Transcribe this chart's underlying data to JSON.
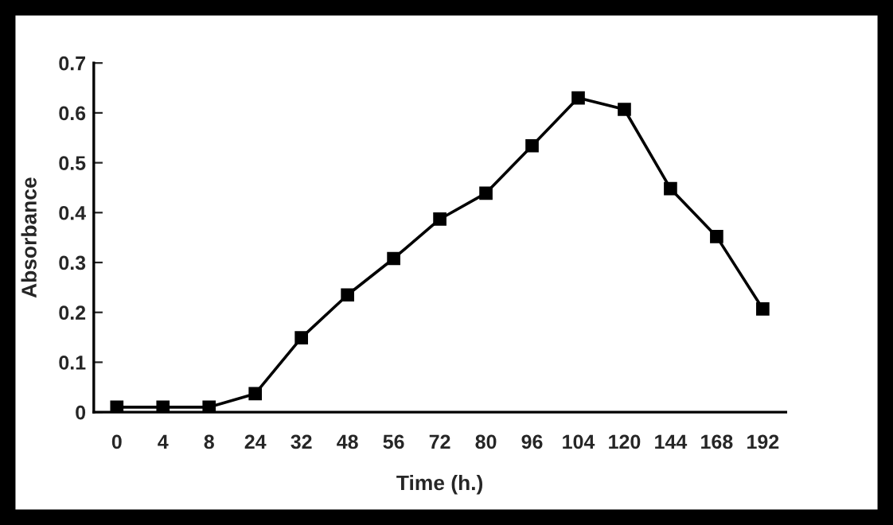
{
  "chart_data": {
    "type": "line",
    "xlabel": "Time (h.)",
    "ylabel": "Absorbance",
    "categories": [
      "0",
      "4",
      "8",
      "24",
      "32",
      "48",
      "56",
      "72",
      "80",
      "96",
      "104",
      "120",
      "144",
      "168",
      "192"
    ],
    "series": [
      {
        "color": "#000000",
        "values": [
          0.01,
          0.01,
          0.01,
          0.037,
          0.149,
          0.235,
          0.308,
          0.387,
          0.439,
          0.534,
          0.63,
          0.607,
          0.448,
          0.352,
          0.207
        ]
      }
    ],
    "ylim": [
      0,
      0.7
    ],
    "yticks": [
      0,
      0.1,
      0.2,
      0.3,
      0.4,
      0.5,
      0.6,
      0.7
    ],
    "grid": false,
    "legend": false,
    "marker": "square",
    "line_style": "solid"
  }
}
